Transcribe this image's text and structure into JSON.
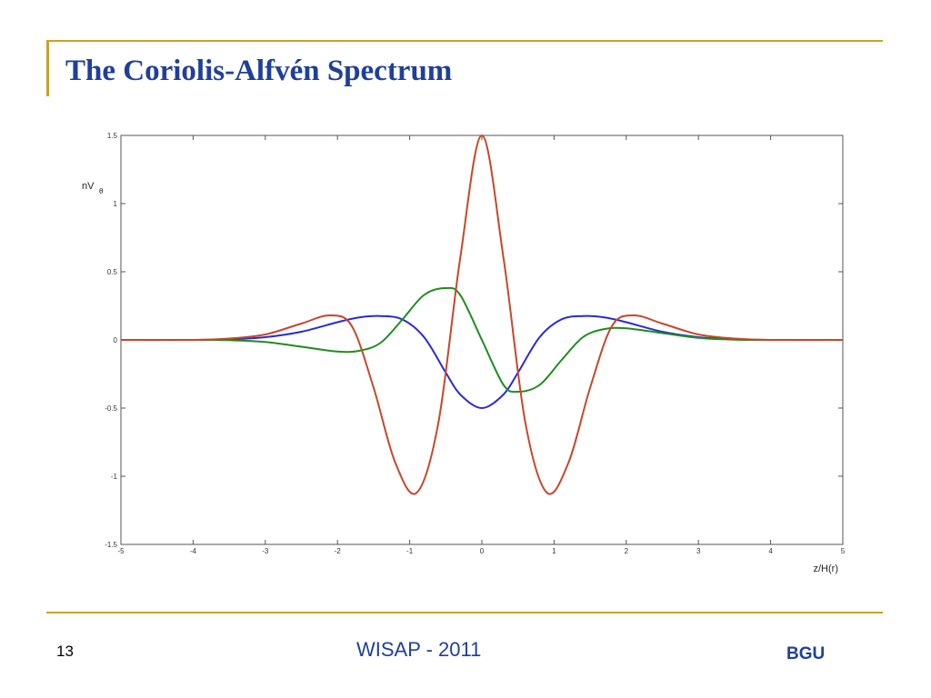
{
  "slide": {
    "title": "The Coriolis-Alfvén Spectrum",
    "page_number": "13",
    "footer_text": "WISAP - 2011",
    "brand": "BGU"
  },
  "colors": {
    "accent_line": "#c9a227",
    "title_text": "#1f3f9a",
    "series_blue": "#2a2ad8",
    "series_green": "#1f8c1f",
    "series_red": "#c8462a"
  },
  "chart_data": {
    "type": "line",
    "xlabel": "z/H(r)",
    "ylabel": "nV",
    "ylabel_subscript": "θ",
    "xlim": [
      -5,
      5
    ],
    "ylim": [
      -1.5,
      1.5
    ],
    "x_ticks": [
      -5,
      -4,
      -3,
      -2,
      -1,
      0,
      1,
      2,
      3,
      4,
      5
    ],
    "y_ticks": [
      -1.5,
      -1,
      -0.5,
      0,
      0.5,
      1,
      1.5
    ],
    "x_tick_labels": [
      "-5",
      "-4",
      "-3",
      "-2",
      "-1",
      "0",
      "1",
      "2",
      "3",
      "4",
      "5"
    ],
    "y_tick_labels": [
      "-1.5",
      "-1",
      "-0.5",
      "0",
      "0.5",
      "1",
      "1.5"
    ],
    "grid": false,
    "series": [
      {
        "color": "#2a2ad8",
        "x": [
          -5,
          -4,
          -3.5,
          -3,
          -2.5,
          -2,
          -1.7,
          -1.4,
          -1.1,
          -0.8,
          -0.5,
          -0.3,
          0,
          0.3,
          0.5,
          0.8,
          1.1,
          1.4,
          1.7,
          2,
          2.5,
          3,
          3.5,
          4,
          5
        ],
        "y": [
          0,
          0,
          0.004,
          0.02,
          0.06,
          0.13,
          0.165,
          0.175,
          0.15,
          0.02,
          -0.24,
          -0.4,
          -0.5,
          -0.4,
          -0.24,
          0.02,
          0.15,
          0.175,
          0.165,
          0.13,
          0.06,
          0.02,
          0.004,
          0,
          0
        ]
      },
      {
        "color": "#1f8c1f",
        "x": [
          -5,
          -4,
          -3.5,
          -3,
          -2.5,
          -2,
          -1.7,
          -1.4,
          -1.1,
          -0.8,
          -0.5,
          -0.3,
          0,
          0.3,
          0.5,
          0.8,
          1.1,
          1.4,
          1.7,
          2,
          2.5,
          3,
          3.5,
          4,
          5
        ],
        "y": [
          0,
          0,
          -0.002,
          -0.015,
          -0.05,
          -0.085,
          -0.08,
          -0.02,
          0.15,
          0.33,
          0.38,
          0.33,
          0,
          -0.33,
          -0.38,
          -0.33,
          -0.15,
          0.02,
          0.08,
          0.085,
          0.05,
          0.015,
          0.002,
          0,
          0
        ]
      },
      {
        "color": "#c8462a",
        "x": [
          -5,
          -4,
          -3.5,
          -3,
          -2.5,
          -2.1,
          -1.8,
          -1.5,
          -1.2,
          -0.9,
          -0.6,
          -0.3,
          0,
          0.3,
          0.6,
          0.9,
          1.2,
          1.5,
          1.8,
          2.1,
          2.5,
          3,
          3.5,
          4,
          5
        ],
        "y": [
          0,
          0,
          0.01,
          0.04,
          0.12,
          0.18,
          0.1,
          -0.35,
          -0.9,
          -1.12,
          -0.6,
          0.6,
          1.5,
          0.6,
          -0.6,
          -1.12,
          -0.9,
          -0.35,
          0.1,
          0.18,
          0.12,
          0.04,
          0.01,
          0,
          0
        ]
      }
    ]
  }
}
